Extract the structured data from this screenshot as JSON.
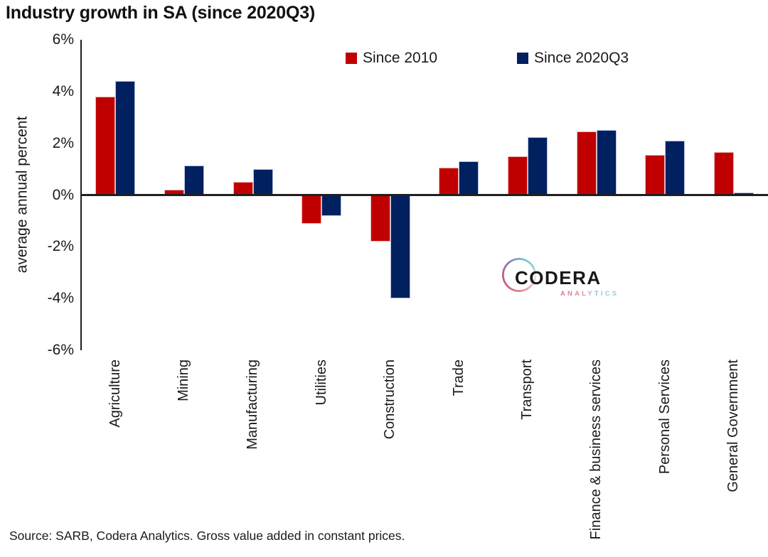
{
  "title": "Industry growth in SA (since 2020Q3)",
  "footer": {
    "source_note": "Source: SARB, Codera Analytics. Gross value added in constant prices."
  },
  "logo": {
    "brand": "CODERA",
    "subtext": "ANALYTICS"
  },
  "colors": {
    "series_since_2010": "#C00000",
    "series_since_2020q3": "#002060",
    "axis": "#1f1f1f",
    "text": "#1a1a1a"
  },
  "chart_data": {
    "type": "bar",
    "title": "Industry growth in SA (since 2020Q3)",
    "xlabel": "",
    "ylabel": "average annual percent",
    "ylim": [
      -6,
      6
    ],
    "ytick_step": 2,
    "ytick_suffix": "%",
    "grid": false,
    "legend_position": "top-center",
    "categories": [
      "Agriculture",
      "Mining",
      "Manufacturing",
      "Utilities",
      "Construction",
      "Trade",
      "Transport",
      "Finance & business services",
      "Personal Services",
      "General Government"
    ],
    "series": [
      {
        "name": "Since 2010",
        "color": "#C00000",
        "values": [
          3.8,
          0.2,
          0.5,
          -1.1,
          -1.8,
          1.05,
          1.5,
          2.45,
          1.55,
          1.65
        ]
      },
      {
        "name": "Since 2020Q3",
        "color": "#002060",
        "values": [
          4.4,
          1.15,
          1.0,
          -0.8,
          -4.0,
          1.3,
          2.25,
          2.5,
          2.1,
          0.1
        ]
      }
    ]
  }
}
